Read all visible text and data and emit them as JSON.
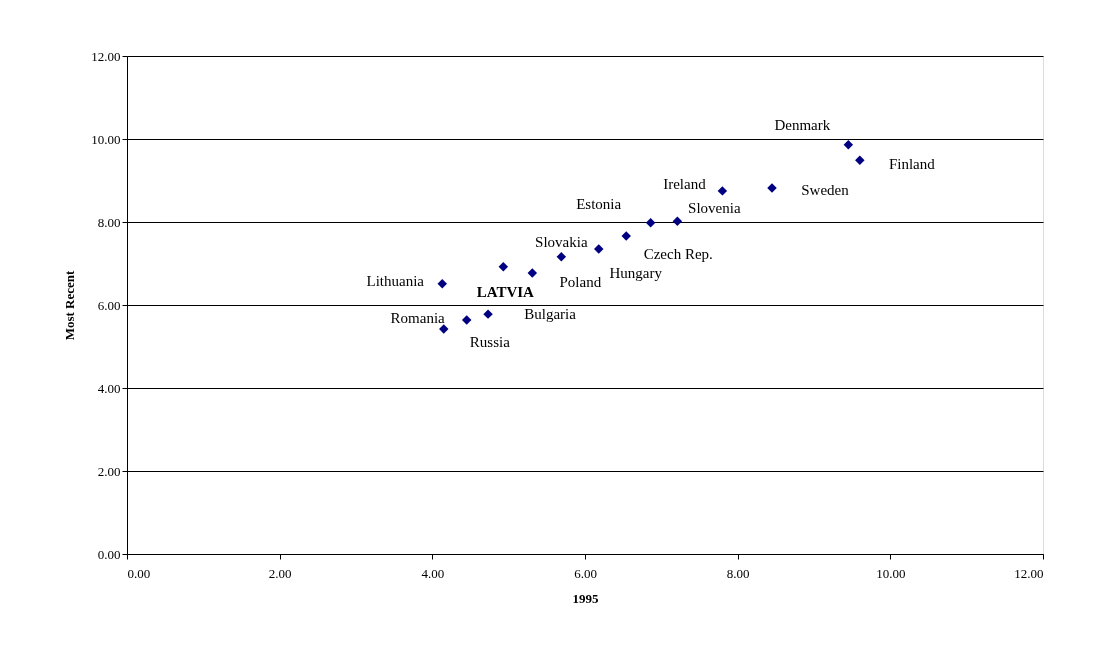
{
  "chart_data": {
    "type": "scatter",
    "xlabel": "1995",
    "ylabel": "Most Recent",
    "marker": "diamond",
    "grid": "y",
    "x": [
      4.13,
      4.93,
      5.31,
      5.69,
      6.18,
      6.54,
      6.86,
      7.21,
      7.8,
      8.45,
      9.45,
      9.6,
      4.45,
      4.73,
      4.15
    ],
    "series": [
      {
        "color": "#000080",
        "values": [
          6.51,
          6.92,
          6.77,
          7.16,
          7.35,
          7.66,
          7.98,
          8.02,
          8.75,
          8.82,
          9.86,
          9.49,
          5.64,
          5.78,
          5.42
        ]
      }
    ],
    "xlim": [
      0,
      12
    ],
    "ylim": [
      0,
      12
    ],
    "xticks": [
      {
        "value": 0,
        "label": "0.00"
      },
      {
        "value": 2,
        "label": "2.00"
      },
      {
        "value": 4,
        "label": "4.00"
      },
      {
        "value": 6,
        "label": "6.00"
      },
      {
        "value": 8,
        "label": "8.00"
      },
      {
        "value": 10,
        "label": "10.00"
      },
      {
        "value": 12,
        "label": "12.00"
      }
    ],
    "yticks": [
      {
        "value": 0,
        "label": "0.00"
      },
      {
        "value": 2,
        "label": "2.00"
      },
      {
        "value": 4,
        "label": "4.00"
      },
      {
        "value": 6,
        "label": "6.00"
      },
      {
        "value": 8,
        "label": "8.00"
      },
      {
        "value": 10,
        "label": "10.00"
      },
      {
        "value": 12,
        "label": "12.00"
      }
    ],
    "annotations": [
      {
        "text": "Lithuania",
        "x": 4.13,
        "y": 6.51
      },
      {
        "text": "LATVIA",
        "x": 4.93,
        "y": 6.92
      },
      {
        "text": "Poland",
        "x": 5.31,
        "y": 6.77
      },
      {
        "text": "Slovakia",
        "x": 5.69,
        "y": 7.16
      },
      {
        "text": "Hungary",
        "x": 6.18,
        "y": 7.35
      },
      {
        "text": "Czech Rep.",
        "x": 6.54,
        "y": 7.66
      },
      {
        "text": "Estonia",
        "x": 6.86,
        "y": 7.98
      },
      {
        "text": "Slovenia",
        "x": 7.21,
        "y": 8.02
      },
      {
        "text": "Ireland",
        "x": 7.8,
        "y": 8.75
      },
      {
        "text": "Sweden",
        "x": 8.45,
        "y": 8.82
      },
      {
        "text": "Denmark",
        "x": 9.45,
        "y": 9.86
      },
      {
        "text": "Finland",
        "x": 9.6,
        "y": 9.49
      },
      {
        "text": "Romania",
        "x": 4.45,
        "y": 5.64
      },
      {
        "text": "Bulgaria",
        "x": 4.73,
        "y": 5.78
      },
      {
        "text": "Russia",
        "x": 4.15,
        "y": 5.42
      }
    ]
  }
}
